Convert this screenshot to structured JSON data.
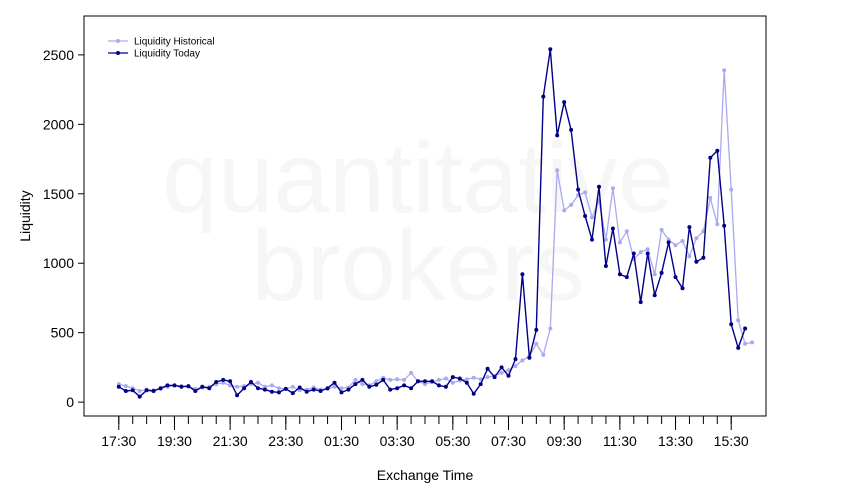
{
  "watermark": {
    "line1": "quantitative",
    "line2": "brokers"
  },
  "chart_data": {
    "type": "line",
    "title": "",
    "xlabel": "Exchange Time",
    "ylabel": "Liquidity",
    "ylim": [
      -100,
      2780
    ],
    "yticks": [
      0,
      500,
      1000,
      1500,
      2000,
      2500
    ],
    "x_tick_labels": [
      "17:30",
      "19:30",
      "21:30",
      "23:30",
      "01:30",
      "03:30",
      "05:30",
      "07:30",
      "09:30",
      "11:30",
      "13:30",
      "15:30"
    ],
    "x_tick_hours": [
      0,
      2,
      4,
      6,
      8,
      10,
      12,
      14,
      16,
      18,
      20,
      22
    ],
    "x_minor_tick_hours": [
      0,
      0.5,
      1,
      1.5,
      2,
      2.5,
      3,
      3.5,
      4,
      4.5,
      5,
      5.5,
      6,
      6.5,
      7,
      7.5,
      8,
      8.5,
      9,
      9.5,
      10,
      10.5,
      11,
      11.5,
      12,
      12.5,
      13,
      13.5,
      14,
      14.5,
      15,
      15.5,
      16,
      16.5,
      17,
      17.5,
      18,
      18.5,
      19,
      19.5,
      20,
      20.5,
      21,
      21.5,
      22
    ],
    "x_range_hours": [
      -1.25,
      23.25
    ],
    "grid": false,
    "legend_position": "top-left",
    "series": [
      {
        "name": "Liquidity Historical",
        "color": "#aaaaee",
        "start_time": "17:30",
        "step_minutes": 15,
        "values": [
          130,
          115,
          100,
          80,
          90,
          85,
          95,
          110,
          120,
          115,
          110,
          95,
          105,
          110,
          130,
          140,
          120,
          110,
          115,
          130,
          140,
          110,
          120,
          100,
          95,
          110,
          85,
          90,
          105,
          90,
          95,
          110,
          100,
          105,
          160,
          130,
          120,
          150,
          175,
          160,
          165,
          160,
          210,
          150,
          130,
          145,
          160,
          170,
          140,
          155,
          165,
          175,
          165,
          180,
          190,
          210,
          230,
          260,
          300,
          330,
          420,
          340,
          530,
          1670,
          1380,
          1420,
          1490,
          1510,
          1330,
          1450,
          1170,
          1540,
          1150,
          1230,
          1030,
          1080,
          1100,
          920,
          1240,
          1170,
          1130,
          1160,
          1050,
          1180,
          1230,
          1470,
          1280,
          2390,
          1530,
          590,
          420,
          430
        ]
      },
      {
        "name": "Liquidity Today",
        "color": "#000088",
        "start_time": "17:30",
        "step_minutes": 15,
        "values": [
          110,
          80,
          85,
          40,
          85,
          80,
          100,
          120,
          120,
          110,
          115,
          80,
          110,
          100,
          145,
          160,
          150,
          50,
          100,
          145,
          100,
          90,
          75,
          70,
          95,
          65,
          105,
          75,
          90,
          80,
          100,
          140,
          70,
          90,
          130,
          160,
          110,
          125,
          160,
          90,
          100,
          120,
          100,
          150,
          150,
          150,
          120,
          110,
          180,
          170,
          140,
          60,
          130,
          240,
          180,
          250,
          190,
          310,
          920,
          320,
          520,
          2200,
          2540,
          1920,
          2160,
          1960,
          1530,
          1340,
          1170,
          1550,
          980,
          1250,
          920,
          900,
          1070,
          720,
          1070,
          770,
          930,
          1150,
          900,
          820,
          1260,
          1010,
          1040,
          1760,
          1810,
          1270,
          560,
          390,
          530
        ]
      }
    ]
  }
}
